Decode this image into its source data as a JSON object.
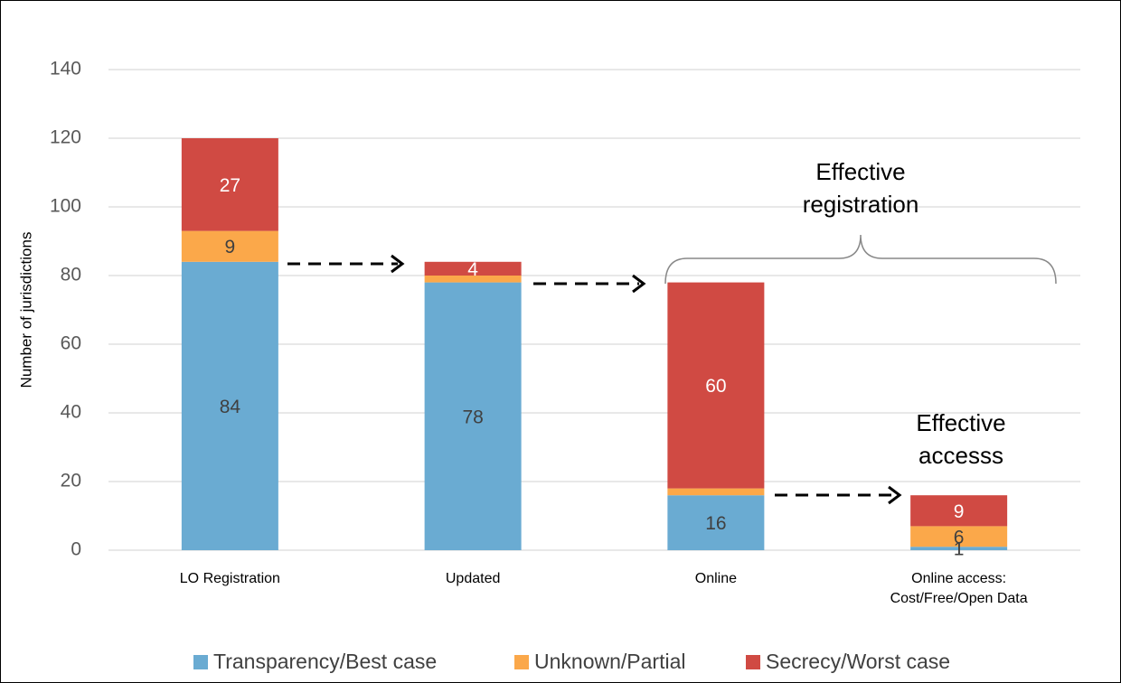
{
  "chart_data": {
    "type": "stacked_bar",
    "categories": [
      "LO Registration",
      "Updated",
      "Online",
      "Online access: Cost/Free/Open Data"
    ],
    "y_label": "Number of jurisdictions",
    "ylim": [
      0,
      140
    ],
    "yticks": [
      0,
      20,
      40,
      60,
      80,
      100,
      120,
      140
    ],
    "grid": true,
    "legend": "bottom",
    "series": [
      {
        "name": "Transparency/Best case",
        "color": "#6aabd2",
        "label_color": "#404040",
        "values": [
          84,
          78,
          16,
          1
        ]
      },
      {
        "name": "Unknown/Partial",
        "color": "#fba84a",
        "label_color": "#404040",
        "values": [
          9,
          2,
          2,
          6
        ],
        "value_labels": [
          "9",
          null,
          null,
          "6"
        ]
      },
      {
        "name": "Secrecy/Worst case",
        "color": "#d04a43",
        "label_color": "#ffffff",
        "values": [
          27,
          4,
          60,
          9
        ]
      }
    ],
    "annotations": [
      {
        "text": "Effective registration"
      },
      {
        "text": "Effective accesss"
      }
    ]
  }
}
